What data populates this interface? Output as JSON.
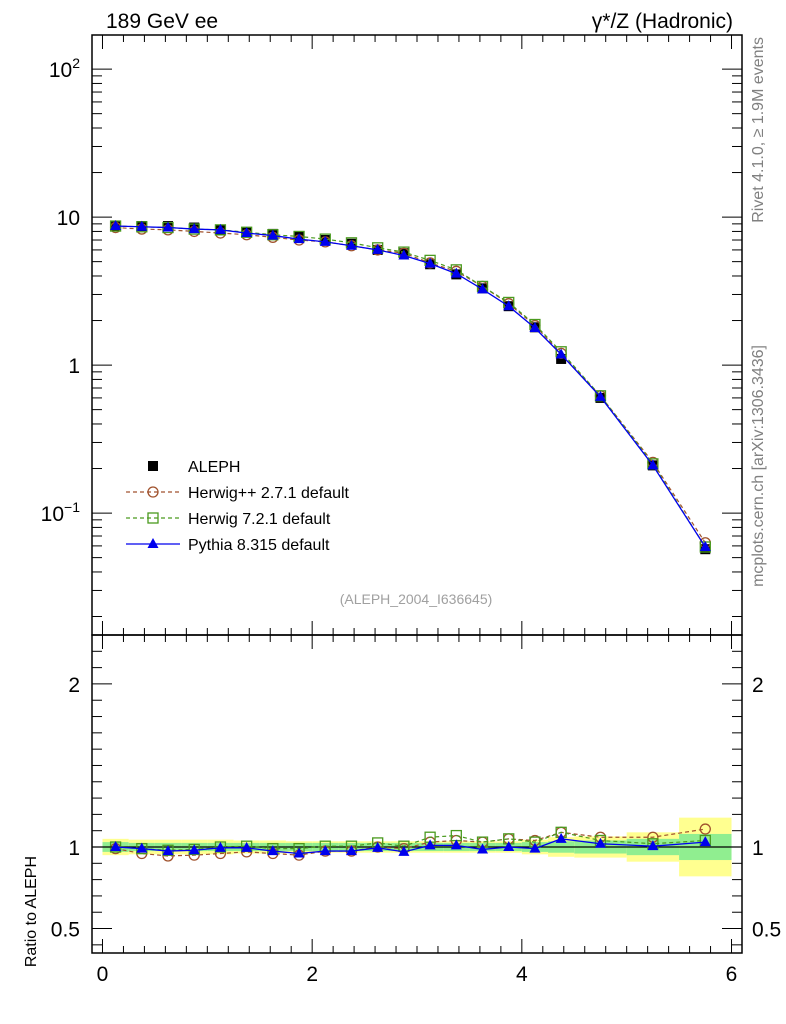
{
  "header": {
    "left_title": "189 GeV ee",
    "right_title": "γ*/Z (Hadronic)"
  },
  "side_labels": {
    "rivet": "Rivet 4.1.0, ≥ 1.9M events",
    "mcplots": "mcplots.cern.ch [arXiv:1306.3436]"
  },
  "watermark": "(ALEPH_2004_I636645)",
  "chart_data": [
    {
      "type": "line",
      "panel": "main",
      "title": "189 GeV ee — γ*/Z (Hadronic)",
      "xlabel": "",
      "ylabel": "",
      "yscale": "log",
      "xlim": [
        -0.1,
        6.1
      ],
      "ylim": [
        0.015,
        170
      ],
      "ytick_labels": [
        "10^-1",
        "1",
        "10",
        "10^2"
      ],
      "x": [
        0.125,
        0.375,
        0.625,
        0.875,
        1.125,
        1.375,
        1.625,
        1.875,
        2.125,
        2.375,
        2.625,
        2.875,
        3.125,
        3.375,
        3.625,
        3.875,
        4.125,
        4.375,
        4.75,
        5.25,
        5.75
      ],
      "series": [
        {
          "name": "ALEPH",
          "color": "#000000",
          "marker": "square-filled",
          "line": "none",
          "values": [
            8.7,
            8.7,
            8.7,
            8.5,
            8.2,
            7.9,
            7.7,
            7.4,
            7.0,
            6.6,
            6.0,
            5.7,
            4.8,
            4.1,
            3.3,
            2.5,
            1.8,
            1.1,
            0.6,
            0.21,
            0.057
          ]
        },
        {
          "name": "Herwig++ 2.7.1 default",
          "color": "#a0522d",
          "marker": "circle-open",
          "line": "dashed",
          "values": [
            8.5,
            8.3,
            8.2,
            8.0,
            7.8,
            7.6,
            7.3,
            7.0,
            6.8,
            6.4,
            6.0,
            5.7,
            4.9,
            4.3,
            3.4,
            2.6,
            1.85,
            1.2,
            0.62,
            0.22,
            0.063
          ]
        },
        {
          "name": "Herwig 7.2.1 default",
          "color": "#4a9a1e",
          "marker": "square-open",
          "line": "dashed",
          "values": [
            8.7,
            8.6,
            8.5,
            8.3,
            8.2,
            7.9,
            7.6,
            7.4,
            7.1,
            6.7,
            6.2,
            5.8,
            5.1,
            4.4,
            3.4,
            2.65,
            1.88,
            1.23,
            0.62,
            0.215,
            0.059
          ]
        },
        {
          "name": "Pythia 8.315 default",
          "color": "#0000ee",
          "marker": "triangle-filled",
          "line": "solid",
          "values": [
            8.7,
            8.6,
            8.5,
            8.3,
            8.2,
            7.8,
            7.5,
            7.1,
            6.8,
            6.4,
            6.0,
            5.5,
            4.85,
            4.15,
            3.25,
            2.5,
            1.78,
            1.18,
            0.61,
            0.21,
            0.059
          ]
        }
      ],
      "legend": {
        "placement": "lower-left",
        "entries": [
          "ALEPH",
          "Herwig++ 2.7.1 default",
          "Herwig 7.2.1 default",
          "Pythia 8.315 default"
        ]
      }
    },
    {
      "type": "line",
      "panel": "ratio",
      "xlabel": "",
      "ylabel": "Ratio to ALEPH",
      "xlim": [
        -0.1,
        6.1
      ],
      "ylim": [
        0.35,
        2.3
      ],
      "xtick_labels": [
        "0",
        "2",
        "4",
        "6"
      ],
      "ytick_labels": [
        "0.5",
        "1",
        "2"
      ],
      "reference_line": 1,
      "bands": {
        "edges": [
          0,
          0.25,
          0.5,
          0.75,
          1.0,
          1.25,
          1.5,
          1.75,
          2.0,
          2.25,
          2.5,
          2.75,
          3.0,
          3.25,
          3.5,
          3.75,
          4.0,
          4.25,
          4.5,
          5.0,
          5.5,
          6.0
        ],
        "inner_color": "#90ee90",
        "outer_color": "#ffff90",
        "inner_half_width": [
          0.03,
          0.025,
          0.025,
          0.025,
          0.025,
          0.025,
          0.025,
          0.025,
          0.025,
          0.025,
          0.025,
          0.025,
          0.025,
          0.025,
          0.025,
          0.025,
          0.03,
          0.035,
          0.04,
          0.05,
          0.08
        ],
        "outer_half_width": [
          0.05,
          0.045,
          0.045,
          0.045,
          0.045,
          0.04,
          0.04,
          0.035,
          0.035,
          0.035,
          0.035,
          0.035,
          0.035,
          0.035,
          0.035,
          0.035,
          0.045,
          0.06,
          0.065,
          0.09,
          0.18
        ]
      },
      "x": [
        0.125,
        0.375,
        0.625,
        0.875,
        1.125,
        1.375,
        1.625,
        1.875,
        2.125,
        2.375,
        2.625,
        2.875,
        3.125,
        3.375,
        3.625,
        3.875,
        4.125,
        4.375,
        4.75,
        5.25,
        5.75
      ],
      "series": [
        {
          "name": "Herwig++ 2.7.1 default",
          "color": "#a0522d",
          "marker": "circle-open",
          "line": "dashed",
          "values": [
            0.99,
            0.96,
            0.945,
            0.95,
            0.96,
            0.97,
            0.96,
            0.95,
            0.975,
            0.975,
            1.0,
            0.99,
            1.03,
            1.04,
            1.03,
            1.05,
            1.04,
            1.09,
            1.06,
            1.06,
            1.11
          ]
        },
        {
          "name": "Herwig 7.2.1 default",
          "color": "#4a9a1e",
          "marker": "square-open",
          "line": "dashed",
          "values": [
            1.0,
            0.99,
            0.98,
            0.985,
            1.0,
            1.005,
            0.99,
            0.99,
            1.005,
            1.005,
            1.025,
            1.005,
            1.06,
            1.07,
            1.03,
            1.05,
            1.03,
            1.09,
            1.04,
            1.02,
            1.04
          ]
        },
        {
          "name": "Pythia 8.315 default",
          "color": "#0000ee",
          "marker": "triangle-filled",
          "line": "solid",
          "values": [
            1.0,
            0.99,
            0.975,
            0.98,
            0.995,
            0.995,
            0.975,
            0.96,
            0.975,
            0.975,
            0.995,
            0.97,
            1.01,
            1.01,
            0.985,
            1.0,
            0.99,
            1.05,
            1.02,
            1.005,
            1.03
          ]
        }
      ]
    }
  ]
}
